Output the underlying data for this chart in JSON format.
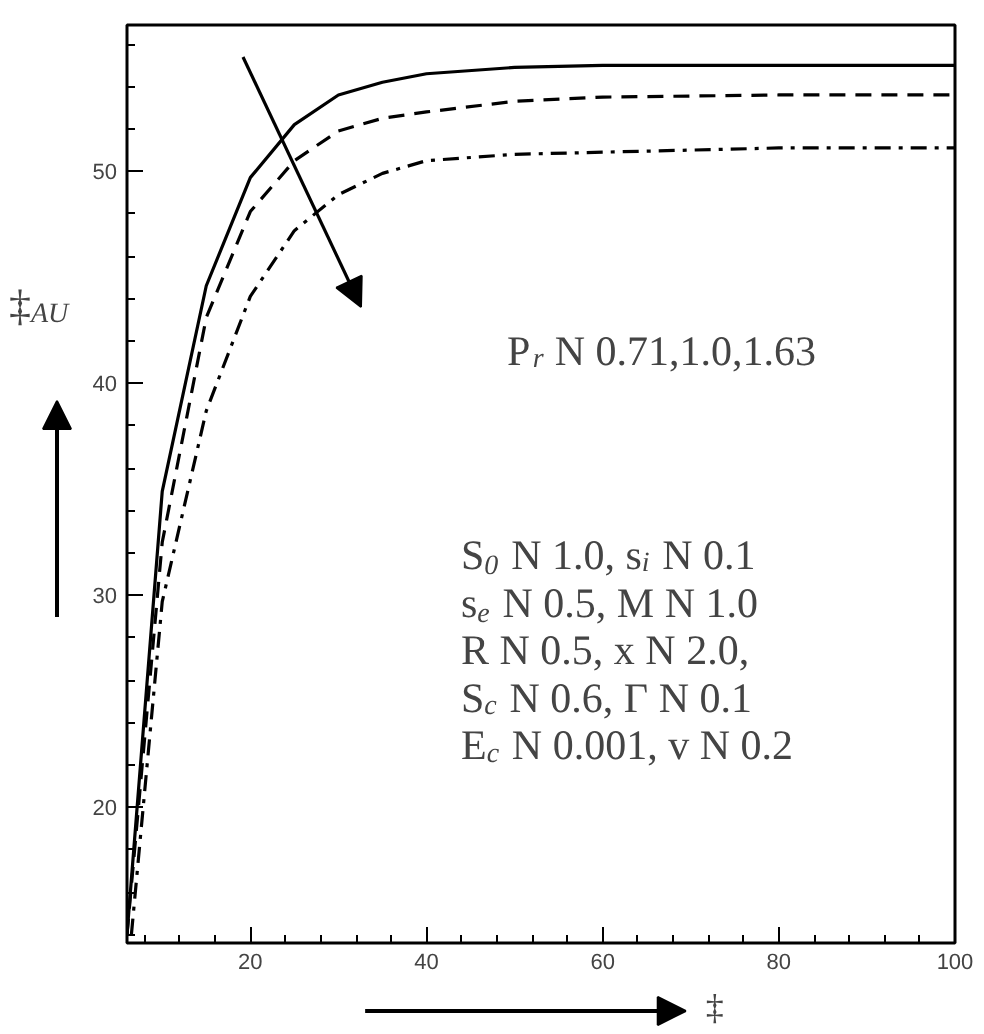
{
  "chart_data": {
    "type": "line",
    "xlabel": "‡",
    "ylabel": "‡$_{AU}$",
    "xlim": [
      6,
      100
    ],
    "ylim": [
      13.6,
      56.9
    ],
    "xticks": [
      20,
      40,
      60,
      80,
      100
    ],
    "yticks": [
      20,
      30,
      40,
      50
    ],
    "grid": false,
    "marker": "none",
    "series": [
      {
        "color": "#000000",
        "line_style": "solid",
        "x": [
          6,
          10,
          15,
          20,
          25,
          30,
          35,
          40,
          50,
          60,
          80,
          100
        ],
        "values": [
          14.0,
          34.9,
          44.6,
          49.7,
          52.2,
          53.6,
          54.2,
          54.6,
          54.9,
          55.0,
          55.0,
          55.0
        ]
      },
      {
        "color": "#000000",
        "line_style": "dashed",
        "x": [
          6,
          10,
          15,
          20,
          25,
          30,
          35,
          40,
          50,
          60,
          80,
          100
        ],
        "values": [
          14.0,
          32.5,
          43.1,
          48.1,
          50.5,
          51.9,
          52.5,
          52.8,
          53.3,
          53.5,
          53.6,
          53.6
        ]
      },
      {
        "color": "#000000",
        "line_style": "dashdot",
        "x": [
          6.5,
          10,
          15,
          20,
          25,
          30,
          35,
          40,
          50,
          60,
          80,
          100
        ],
        "values": [
          14.0,
          29.7,
          38.7,
          44.1,
          47.2,
          48.9,
          49.9,
          50.5,
          50.8,
          50.9,
          51.1,
          51.1
        ]
      }
    ],
    "annotations": [
      "P$_{r}$ N 0.71,1.0,1.63",
      "S$_{0}$ N 1.0, s$_{i}$ N 0.1",
      "s$_{e}$ N 0.5, M N 1.0",
      "R N 0.5, x N 2.0,",
      "S$_{c}$ N 0.6, Γ N 0.1",
      "E$_{c}$ N 0.001, v N 0.2"
    ]
  }
}
